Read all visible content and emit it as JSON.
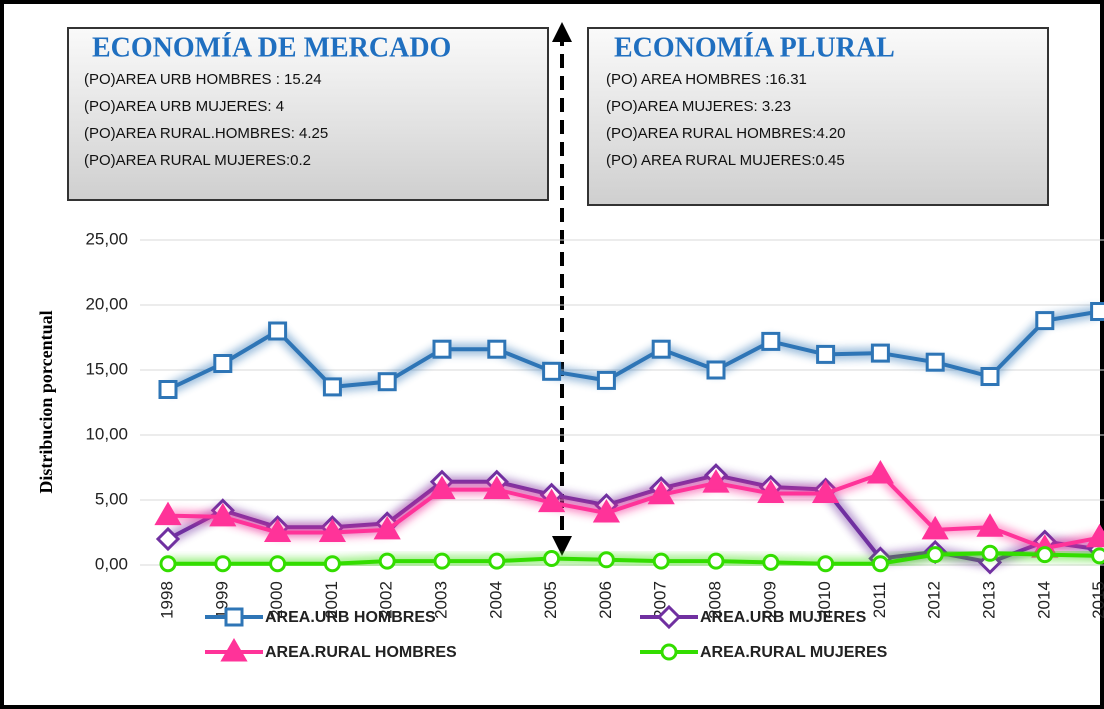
{
  "chart_data": {
    "type": "line",
    "y_label": "Distribucion porcentual",
    "annotations": [
      {
        "title": "ECONOMÍA DE MERCADO",
        "lines": [
          "(PO)AREA URB HOMBRES : 15.24",
          "(PO)AREA URB MUJERES: 4",
          "(PO)AREA RURAL.HOMBRES: 4.25",
          "(PO)AREA RURAL MUJERES:0.2"
        ]
      },
      {
        "title": "ECONOMÍA PLURAL",
        "lines": [
          "(PO) AREA HOMBRES :16.31",
          "(PO)AREA MUJERES: 3.23",
          "(PO)AREA RURAL HOMBRES:4.20",
          "(PO) AREA RURAL MUJERES:0.45"
        ]
      }
    ],
    "categories": [
      "1998",
      "1999",
      "2000",
      "2001",
      "2002",
      "2003",
      "2004",
      "2005",
      "2006",
      "2007",
      "2008",
      "2009",
      "2010",
      "2011",
      "2012",
      "2013",
      "2014",
      "2015"
    ],
    "series": [
      {
        "name": "AREA.URB HOMBRES",
        "color": "#2e75b6",
        "marker": "square",
        "values": [
          13.5,
          15.5,
          18.0,
          13.7,
          14.1,
          16.6,
          16.6,
          14.9,
          14.2,
          16.6,
          15.0,
          17.2,
          16.2,
          16.3,
          15.6,
          14.5,
          18.8,
          19.5
        ]
      },
      {
        "name": "AREA.URB MUJERES",
        "color": "#7030a0",
        "marker": "diamond",
        "values": [
          2.0,
          4.2,
          2.9,
          2.9,
          3.2,
          6.4,
          6.4,
          5.4,
          4.6,
          5.9,
          6.9,
          6.0,
          5.8,
          0.5,
          1.0,
          0.2,
          1.8,
          1.2
        ]
      },
      {
        "name": "AREA.RURAL HOMBRES",
        "color": "#ff3399",
        "marker": "triangle",
        "values": [
          3.8,
          3.7,
          2.5,
          2.5,
          2.7,
          5.8,
          5.8,
          4.8,
          4.0,
          5.4,
          6.3,
          5.5,
          5.5,
          7.0,
          2.7,
          2.9,
          1.3,
          2.1
        ]
      },
      {
        "name": "AREA.RURAL MUJERES",
        "color": "#33dd00",
        "marker": "circle",
        "values": [
          0.1,
          0.1,
          0.1,
          0.1,
          0.3,
          0.3,
          0.3,
          0.5,
          0.4,
          0.3,
          0.3,
          0.2,
          0.1,
          0.1,
          0.8,
          0.9,
          0.8,
          0.7
        ]
      }
    ],
    "ylim": [
      0,
      25
    ],
    "yticks": [
      {
        "value": 0,
        "label": "0,00"
      },
      {
        "value": 5,
        "label": "5,00"
      },
      {
        "value": 10,
        "label": "10,00"
      },
      {
        "value": 15,
        "label": "15,00"
      },
      {
        "value": 20,
        "label": "20,00"
      },
      {
        "value": 25,
        "label": "25,00"
      }
    ],
    "grid": true
  }
}
